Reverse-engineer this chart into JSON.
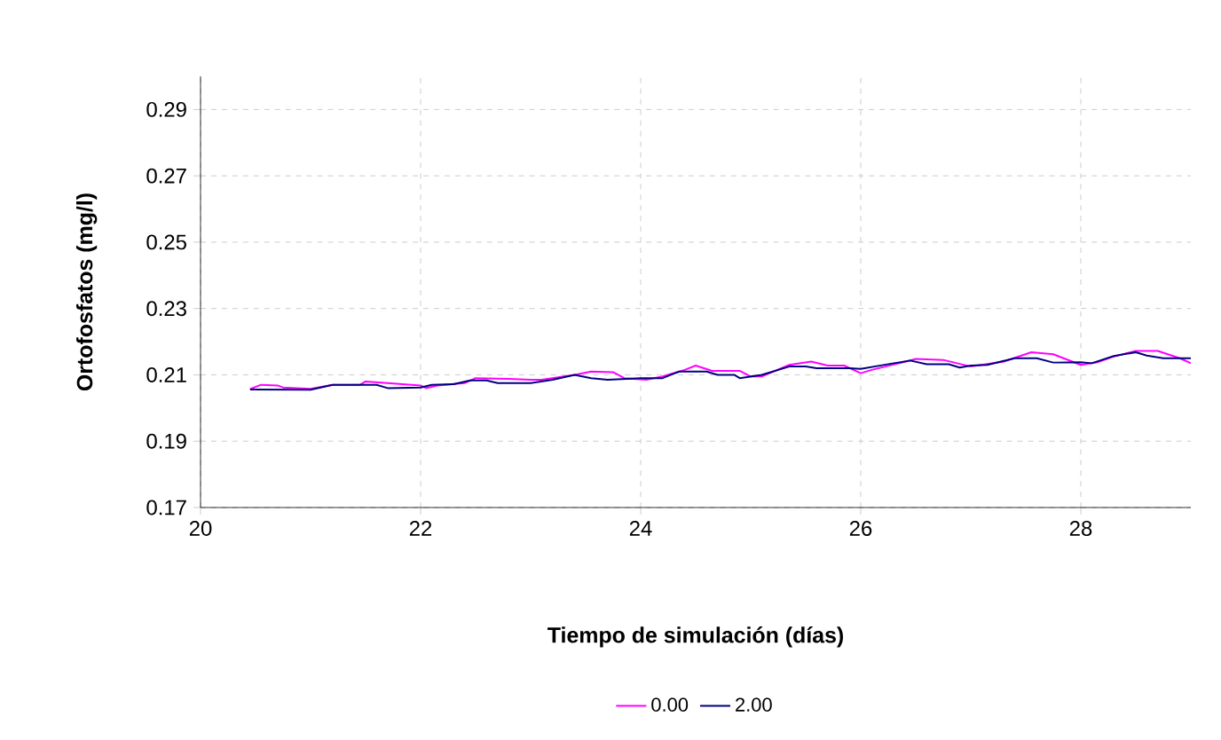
{
  "chart_data": {
    "type": "line",
    "xlabel": "Tiempo de simulación (días)",
    "ylabel": "Ortofosfatos (mg/l)",
    "xlim": [
      20,
      29
    ],
    "xticks": [
      20,
      22,
      24,
      26,
      28
    ],
    "ylim": [
      0.17,
      0.3
    ],
    "yticks": [
      0.17,
      0.19,
      0.21,
      0.23,
      0.25,
      0.27,
      0.29
    ],
    "grid": true,
    "legend": "bottom",
    "line_style": "solid",
    "marker": "none",
    "series": [
      {
        "name": "0.00",
        "color": "#ff00ff",
        "x": [
          20.45,
          20.55,
          20.7,
          20.75,
          21.0,
          21.2,
          21.45,
          21.5,
          21.7,
          22.0,
          22.05,
          22.15,
          22.4,
          22.5,
          22.8,
          23.0,
          23.1,
          23.4,
          23.55,
          23.75,
          23.85,
          24.05,
          24.2,
          24.4,
          24.5,
          24.65,
          24.9,
          25.0,
          25.1,
          25.35,
          25.55,
          25.7,
          25.85,
          26.0,
          26.1,
          26.35,
          26.5,
          26.75,
          27.0,
          27.3,
          27.55,
          27.75,
          28.0,
          28.15,
          28.3,
          28.5,
          28.7,
          28.9,
          29.0
        ],
        "values": [
          0.2057,
          0.207,
          0.2068,
          0.2062,
          0.2058,
          0.207,
          0.207,
          0.208,
          0.2075,
          0.2068,
          0.206,
          0.2068,
          0.2075,
          0.209,
          0.2088,
          0.2085,
          0.2085,
          0.21,
          0.211,
          0.2108,
          0.209,
          0.2085,
          0.2095,
          0.2115,
          0.2128,
          0.2112,
          0.2112,
          0.2095,
          0.2095,
          0.213,
          0.214,
          0.2128,
          0.2128,
          0.2105,
          0.2115,
          0.2135,
          0.2148,
          0.2145,
          0.2125,
          0.214,
          0.2168,
          0.2162,
          0.213,
          0.2138,
          0.2155,
          0.2172,
          0.2172,
          0.215,
          0.2135
        ]
      },
      {
        "name": "2.00",
        "color": "#000080",
        "x": [
          20.45,
          21.0,
          21.2,
          21.6,
          21.7,
          22.0,
          22.1,
          22.3,
          22.45,
          22.6,
          22.7,
          23.0,
          23.2,
          23.4,
          23.55,
          23.7,
          24.0,
          24.2,
          24.35,
          24.6,
          24.7,
          24.85,
          24.9,
          25.1,
          25.35,
          25.5,
          25.6,
          25.9,
          26.0,
          26.3,
          26.45,
          26.6,
          26.8,
          26.9,
          27.0,
          27.15,
          27.4,
          27.6,
          27.75,
          28.0,
          28.1,
          28.3,
          28.5,
          28.6,
          28.75,
          29.0
        ],
        "values": [
          0.2056,
          0.2055,
          0.207,
          0.207,
          0.206,
          0.2062,
          0.207,
          0.2072,
          0.2083,
          0.2083,
          0.2075,
          0.2075,
          0.2085,
          0.21,
          0.209,
          0.2085,
          0.209,
          0.209,
          0.211,
          0.211,
          0.21,
          0.21,
          0.209,
          0.21,
          0.2125,
          0.2125,
          0.212,
          0.212,
          0.2118,
          0.2135,
          0.2143,
          0.2132,
          0.2132,
          0.2122,
          0.2128,
          0.213,
          0.215,
          0.215,
          0.2137,
          0.2138,
          0.2135,
          0.2157,
          0.2168,
          0.2158,
          0.215,
          0.215
        ]
      }
    ]
  }
}
